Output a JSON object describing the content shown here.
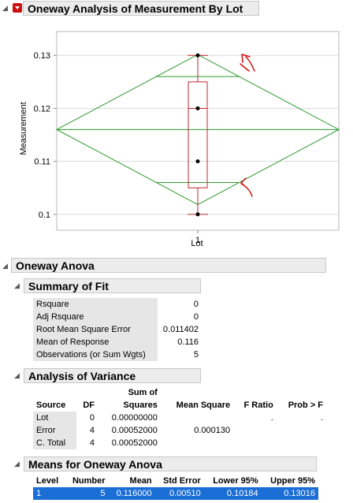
{
  "report": {
    "title": "Oneway Analysis of Measurement By Lot"
  },
  "chart_data": {
    "type": "box",
    "ylabel": "Measurement",
    "xlabel": "Lot",
    "categories": [
      "1"
    ],
    "ylim": [
      0.097,
      0.1345
    ],
    "y_ticks": [
      "0.1",
      "0.11",
      "0.12",
      "0.13"
    ],
    "y_tick_values": [
      0.1,
      0.11,
      0.12,
      0.13
    ],
    "points": [
      0.1,
      0.11,
      0.12,
      0.13
    ],
    "box": {
      "min": 0.1,
      "q1": 0.105,
      "median": 0.12,
      "q3": 0.125,
      "max": 0.13
    },
    "means_diamond": {
      "mean": 0.116,
      "lower95": 0.10184,
      "upper95": 0.13016,
      "overlap_lower": 0.106,
      "overlap_upper": 0.126
    },
    "grid": true
  },
  "anova": {
    "title": "Oneway Anova",
    "summary_of_fit": {
      "title": "Summary of Fit",
      "rows": [
        {
          "label": "Rsquare",
          "value": "0"
        },
        {
          "label": "Adj Rsquare",
          "value": "0"
        },
        {
          "label": "Root Mean Square Error",
          "value": "0.011402"
        },
        {
          "label": "Mean of Response",
          "value": "0.116"
        },
        {
          "label": "Observations (or Sum Wgts)",
          "value": "5"
        }
      ]
    },
    "analysis_of_variance": {
      "title": "Analysis of Variance",
      "sum_of": "Sum of",
      "headers": [
        "Source",
        "DF",
        "Squares",
        "Mean Square",
        "F Ratio",
        "Prob > F"
      ],
      "rows": [
        {
          "source": "Lot",
          "df": "0",
          "ss": "0.00000000",
          "ms": "",
          "f": ".",
          "p": "."
        },
        {
          "source": "Error",
          "df": "4",
          "ss": "0.00052000",
          "ms": "0.000130",
          "f": "",
          "p": ""
        },
        {
          "source": "C. Total",
          "df": "4",
          "ss": "0.00052000",
          "ms": "",
          "f": "",
          "p": ""
        }
      ]
    },
    "means": {
      "title": "Means for Oneway Anova",
      "headers": [
        "Level",
        "Number",
        "Mean",
        "Std Error",
        "Lower 95%",
        "Upper 95%"
      ],
      "rows": [
        {
          "level": "1",
          "number": "5",
          "mean": "0.116000",
          "se": "0.00510",
          "lower": "0.10184",
          "upper": "0.13016"
        }
      ]
    }
  },
  "colors": {
    "diamond": "#2e9a2e",
    "box": "#c0282f",
    "points": "#000000"
  }
}
